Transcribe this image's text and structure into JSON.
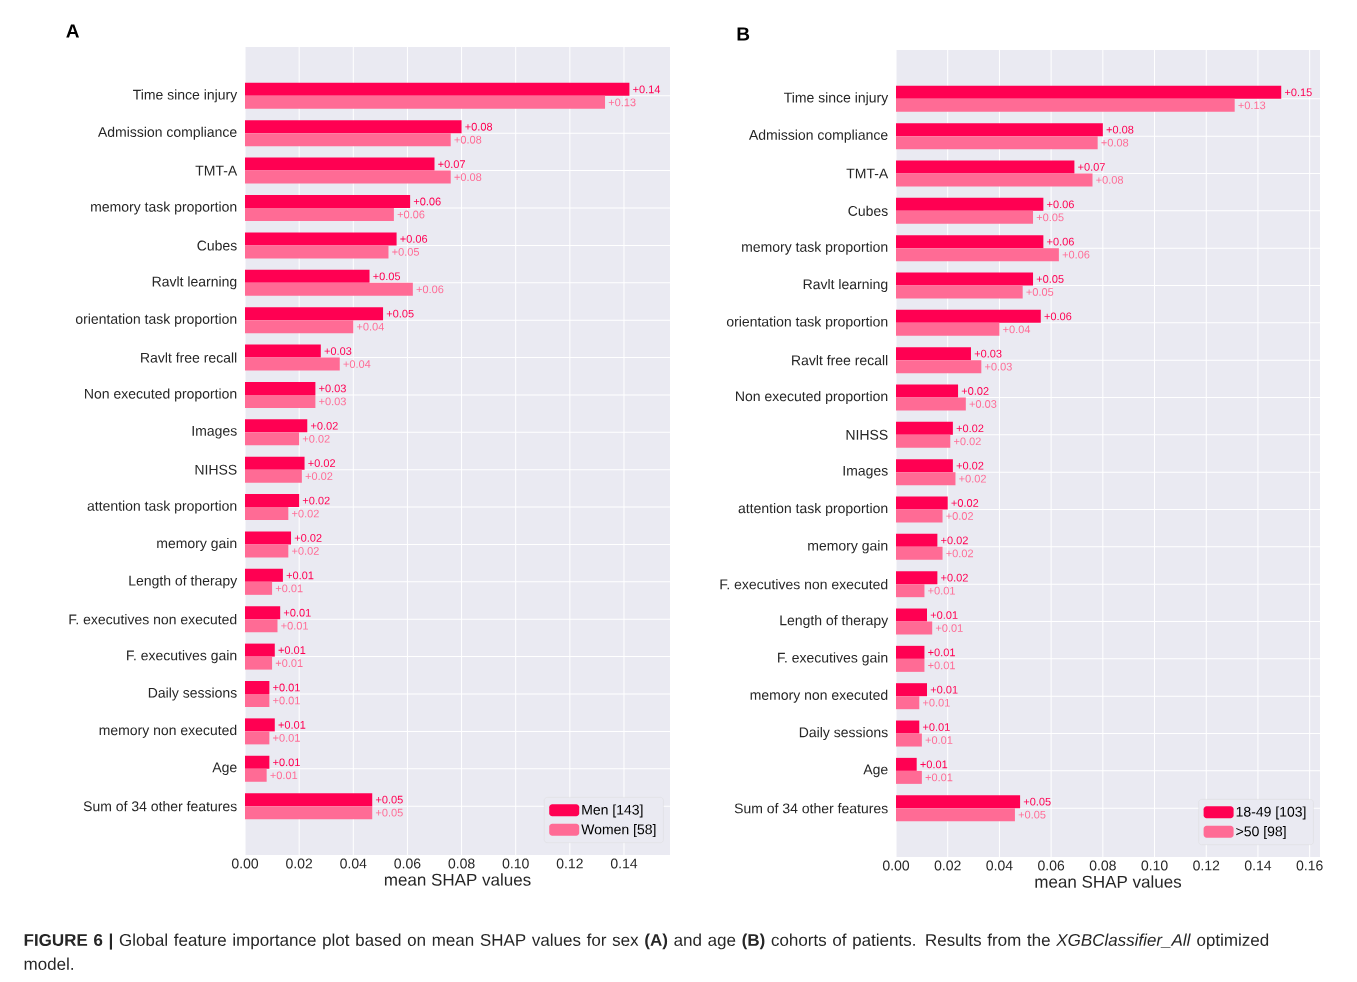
{
  "chart_data": [
    {
      "type": "bar",
      "orientation": "horizontal",
      "title": "A",
      "xlabel": "mean SHAP values",
      "categories": [
        "Time since injury",
        "Admission compliance",
        "TMT-A",
        "memory task proportion",
        "Cubes",
        "Ravlt learning",
        "orientation task proportion",
        "Ravlt free recall",
        "Non executed proportion",
        "Images",
        "NIHSS",
        "attention task proportion",
        "memory gain",
        "Length of therapy",
        "F. executives non executed",
        "F. executives gain",
        "Daily sessions",
        "memory non executed",
        "Age",
        "Sum of 34 other features"
      ],
      "series": [
        {
          "name": "Men [143]",
          "color": "#ff0052",
          "values": [
            0.142,
            0.08,
            0.07,
            0.061,
            0.056,
            0.046,
            0.051,
            0.028,
            0.026,
            0.023,
            0.022,
            0.02,
            0.017,
            0.014,
            0.013,
            0.011,
            0.009,
            0.011,
            0.009,
            0.047
          ],
          "value_labels": [
            "+0.14",
            "+0.08",
            "+0.07",
            "+0.06",
            "+0.06",
            "+0.05",
            "+0.05",
            "+0.03",
            "+0.03",
            "+0.02",
            "+0.02",
            "+0.02",
            "+0.02",
            "+0.01",
            "+0.01",
            "+0.01",
            "+0.01",
            "+0.01",
            "+0.01",
            "+0.05"
          ]
        },
        {
          "name": "Women [58]",
          "color": "#ff6b95",
          "values": [
            0.133,
            0.076,
            0.076,
            0.055,
            0.053,
            0.062,
            0.04,
            0.035,
            0.026,
            0.02,
            0.021,
            0.016,
            0.016,
            0.01,
            0.012,
            0.01,
            0.009,
            0.009,
            0.008,
            0.047
          ],
          "value_labels": [
            "+0.13",
            "+0.08",
            "+0.08",
            "+0.06",
            "+0.05",
            "+0.06",
            "+0.04",
            "+0.04",
            "+0.03",
            "+0.02",
            "+0.02",
            "+0.02",
            "+0.02",
            "+0.01",
            "+0.01",
            "+0.01",
            "+0.01",
            "+0.01",
            "+0.01",
            "+0.05"
          ]
        }
      ],
      "xlim": [
        0,
        0.157
      ],
      "xticks": [
        {
          "value": 0,
          "label": "0.00"
        },
        {
          "value": 0.02,
          "label": "0.02"
        },
        {
          "value": 0.04,
          "label": "0.04"
        },
        {
          "value": 0.06,
          "label": "0.06"
        },
        {
          "value": 0.08,
          "label": "0.08"
        },
        {
          "value": 0.1,
          "label": "0.10"
        },
        {
          "value": 0.12,
          "label": "0.12"
        },
        {
          "value": 0.14,
          "label": "0.14"
        }
      ],
      "grid": true,
      "legend": "bottom right",
      "annotations": [
        "**FIGURE 6 |** Global feature importance plot based on mean SHAP values for sex **(A)** and age **(B)** cohorts of patients. Results from the *XGBClassifier_All* optimized model."
      ]
    },
    {
      "type": "bar",
      "orientation": "horizontal",
      "title": "B",
      "xlabel": "mean SHAP values",
      "categories": [
        "Time since injury",
        "Admission compliance",
        "TMT-A",
        "Cubes",
        "memory task proportion",
        "Ravlt learning",
        "orientation task proportion",
        "Ravlt free recall",
        "Non executed proportion",
        "NIHSS",
        "Images",
        "attention task proportion",
        "memory gain",
        "F. executives non executed",
        "Length of therapy",
        "F. executives gain",
        "memory non executed",
        "Daily sessions",
        "Age",
        "Sum of 34 other features"
      ],
      "series": [
        {
          "name": "18-49 [103]",
          "color": "#ff0052",
          "values": [
            0.149,
            0.08,
            0.069,
            0.057,
            0.057,
            0.053,
            0.056,
            0.029,
            0.024,
            0.022,
            0.022,
            0.02,
            0.016,
            0.016,
            0.012,
            0.011,
            0.012,
            0.009,
            0.008,
            0.048
          ],
          "value_labels": [
            "+0.15",
            "+0.08",
            "+0.07",
            "+0.06",
            "+0.06",
            "+0.05",
            "+0.06",
            "+0.03",
            "+0.02",
            "+0.02",
            "+0.02",
            "+0.02",
            "+0.02",
            "+0.02",
            "+0.01",
            "+0.01",
            "+0.01",
            "+0.01",
            "+0.01",
            "+0.05"
          ]
        },
        {
          "name": ">50 [98]",
          "color": "#ff6b95",
          "values": [
            0.131,
            0.078,
            0.076,
            0.053,
            0.063,
            0.049,
            0.04,
            0.033,
            0.027,
            0.021,
            0.023,
            0.018,
            0.018,
            0.011,
            0.014,
            0.011,
            0.009,
            0.01,
            0.01,
            0.046
          ],
          "value_labels": [
            "+0.13",
            "+0.08",
            "+0.08",
            "+0.05",
            "+0.06",
            "+0.05",
            "+0.04",
            "+0.03",
            "+0.03",
            "+0.02",
            "+0.02",
            "+0.02",
            "+0.02",
            "+0.01",
            "+0.01",
            "+0.01",
            "+0.01",
            "+0.01",
            "+0.01",
            "+0.05"
          ]
        }
      ],
      "xlim": [
        0,
        0.164
      ],
      "xticks": [
        {
          "value": 0,
          "label": "0.00"
        },
        {
          "value": 0.02,
          "label": "0.02"
        },
        {
          "value": 0.04,
          "label": "0.04"
        },
        {
          "value": 0.06,
          "label": "0.06"
        },
        {
          "value": 0.08,
          "label": "0.08"
        },
        {
          "value": 0.1,
          "label": "0.10"
        },
        {
          "value": 0.12,
          "label": "0.12"
        },
        {
          "value": 0.14,
          "label": "0.14"
        },
        {
          "value": 0.16,
          "label": "0.16"
        }
      ],
      "grid": true,
      "legend": "bottom right"
    }
  ]
}
